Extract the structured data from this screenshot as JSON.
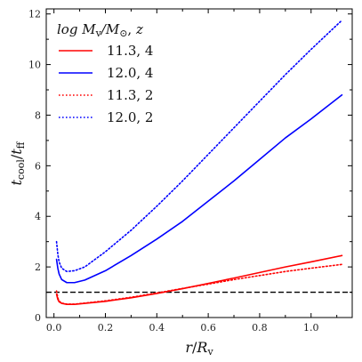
{
  "chart_data": {
    "type": "line",
    "xlabel": "r/R_v",
    "ylabel": "t_cool/t_ff",
    "xlim": [
      -0.03,
      1.16
    ],
    "ylim": [
      0,
      12.2
    ],
    "xticks": [
      0.0,
      0.2,
      0.4,
      0.6,
      0.8,
      1.0
    ],
    "xtick_labels": [
      "0.0",
      "0.2",
      "0.4",
      "0.6",
      "0.8",
      "1.0"
    ],
    "yticks": [
      0,
      2,
      4,
      6,
      8,
      10,
      12
    ],
    "ytick_labels": [
      "0",
      "2",
      "4",
      "6",
      "8",
      "10",
      "12"
    ],
    "legend": {
      "title": "log M_v/M_⊙, z",
      "placement": "top-left",
      "entries": [
        "11.3, 4",
        "12.0, 4",
        "11.3, 2",
        "12.0, 2"
      ]
    },
    "reference_line": {
      "y": 1.0,
      "style": "dashed",
      "color": "#000000"
    },
    "series": [
      {
        "name": "11.3, 4",
        "color": "#ff0000",
        "style": "solid",
        "x": [
          0.01,
          0.015,
          0.02,
          0.03,
          0.05,
          0.08,
          0.12,
          0.2,
          0.3,
          0.4,
          0.5,
          0.6,
          0.7,
          0.8,
          0.9,
          1.0,
          1.12
        ],
        "y": [
          0.92,
          0.72,
          0.62,
          0.56,
          0.52,
          0.52,
          0.56,
          0.64,
          0.78,
          0.95,
          1.14,
          1.35,
          1.56,
          1.78,
          2.0,
          2.2,
          2.45
        ]
      },
      {
        "name": "12.0, 4",
        "color": "#0000ff",
        "style": "solid",
        "x": [
          0.01,
          0.015,
          0.02,
          0.03,
          0.05,
          0.08,
          0.12,
          0.2,
          0.3,
          0.4,
          0.5,
          0.6,
          0.7,
          0.8,
          0.9,
          1.0,
          1.12
        ],
        "y": [
          2.3,
          1.95,
          1.72,
          1.5,
          1.38,
          1.38,
          1.48,
          1.85,
          2.45,
          3.1,
          3.8,
          4.6,
          5.4,
          6.25,
          7.1,
          7.85,
          8.8
        ]
      },
      {
        "name": "11.3, 2",
        "color": "#ff0000",
        "style": "dotted",
        "x": [
          0.01,
          0.015,
          0.02,
          0.03,
          0.05,
          0.08,
          0.12,
          0.2,
          0.3,
          0.4,
          0.5,
          0.6,
          0.7,
          0.8,
          0.9,
          1.0,
          1.12
        ],
        "y": [
          1.05,
          0.78,
          0.65,
          0.57,
          0.53,
          0.53,
          0.57,
          0.66,
          0.8,
          0.97,
          1.15,
          1.32,
          1.5,
          1.66,
          1.82,
          1.95,
          2.1
        ]
      },
      {
        "name": "12.0, 2",
        "color": "#0000ff",
        "style": "dotted",
        "x": [
          0.01,
          0.015,
          0.02,
          0.03,
          0.05,
          0.08,
          0.12,
          0.2,
          0.3,
          0.4,
          0.5,
          0.6,
          0.7,
          0.8,
          0.9,
          1.0,
          1.12
        ],
        "y": [
          3.0,
          2.5,
          2.2,
          1.95,
          1.82,
          1.85,
          2.0,
          2.6,
          3.45,
          4.4,
          5.4,
          6.45,
          7.5,
          8.55,
          9.6,
          10.6,
          11.75
        ]
      }
    ]
  }
}
